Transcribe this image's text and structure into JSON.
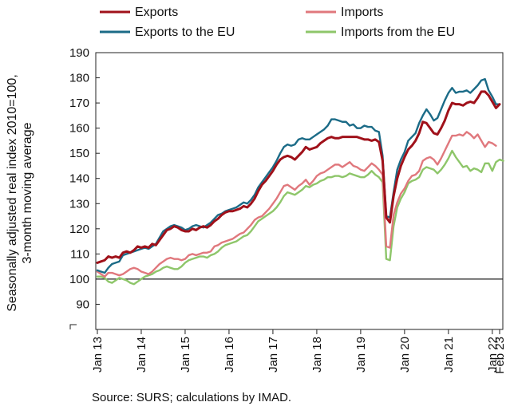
{
  "chart_data": {
    "type": "line",
    "ylabel_lines": [
      "Seasonally adjusted real index 2010=100,",
      "3-month moving average"
    ],
    "source": "Source: SURS; calculations by IMAD.",
    "ylim": [
      80,
      190
    ],
    "yticks": [
      "190",
      "180",
      "170",
      "160",
      "150",
      "140",
      "130",
      "120",
      "110",
      "100",
      "90"
    ],
    "xticks": [
      "Jan 13",
      "Jan 14",
      "Jan 15",
      "Jan 16",
      "Jan 17",
      "Jan 18",
      "Jan 19",
      "Jan 20",
      "Jan 21",
      "Jan 22",
      "Feb 23"
    ],
    "x_start": "Jan 2013",
    "x_end": "Feb 2023",
    "reference_line": 100,
    "grid": false,
    "legend_position": "top",
    "series": [
      {
        "name": "Exports",
        "color": "#a0111a",
        "values": [
          106.5,
          107,
          107.5,
          109,
          108.5,
          109,
          108.5,
          110.5,
          111,
          110.5,
          111.5,
          113,
          112.5,
          113,
          112.5,
          114,
          113.5,
          115.5,
          117.5,
          119.5,
          120,
          121,
          120.5,
          119.5,
          119,
          119,
          120,
          119.5,
          120.5,
          121,
          120.5,
          121.5,
          123,
          124,
          125.5,
          126.5,
          127,
          127,
          127.5,
          128,
          129,
          128.5,
          130,
          132,
          135,
          137.5,
          139,
          141,
          143,
          145.5,
          147.5,
          148.5,
          149,
          148.5,
          147.5,
          149,
          150.5,
          152.5,
          151.5,
          152,
          152.5,
          154,
          155,
          156,
          156.5,
          156,
          156,
          156.5,
          156.5,
          156.5,
          156.5,
          156.5,
          156,
          155.5,
          155.5,
          155,
          155.5,
          154.5,
          147,
          124.5,
          122.5,
          133,
          140,
          145,
          148.5,
          151.5,
          153,
          155,
          158,
          162.5,
          162,
          160,
          158,
          157.5,
          160,
          163,
          167,
          170,
          169.5,
          169.5,
          169,
          170,
          170.5,
          170,
          172,
          174.5,
          174.5,
          173,
          170.5,
          168,
          169.5
        ]
      },
      {
        "name": "Imports",
        "color": "#e0787d",
        "values": [
          103,
          102,
          101,
          102.5,
          102.5,
          102,
          101.5,
          102,
          103,
          104,
          104.5,
          104,
          103,
          102.5,
          102,
          103,
          104.5,
          106,
          107,
          108,
          108.5,
          108,
          108,
          107.5,
          108,
          109.5,
          110,
          109.5,
          110,
          110.5,
          110.5,
          111,
          113,
          113.5,
          114.5,
          115,
          115.5,
          116,
          117,
          118,
          118.5,
          120,
          121.5,
          123.5,
          124.5,
          125,
          126.5,
          128,
          130,
          132,
          134.5,
          137,
          137.5,
          136.5,
          135.5,
          137,
          138,
          139.5,
          137.5,
          139,
          141,
          142,
          142.5,
          143.5,
          144.5,
          145.5,
          145.5,
          144.5,
          145.5,
          146.5,
          145,
          144.5,
          143.5,
          143,
          144.5,
          146,
          145,
          143.5,
          141.5,
          113,
          112.5,
          125.5,
          130.5,
          134,
          136,
          139,
          141,
          141.5,
          143,
          147,
          148,
          148.5,
          147.5,
          145.5,
          148,
          151,
          154,
          157,
          157,
          157.5,
          157,
          158.5,
          157.5,
          156,
          157.5,
          155,
          152.5,
          154.5,
          154,
          153
        ]
      },
      {
        "name": "Exports to the EU",
        "color": "#1b6b87",
        "values": [
          103.5,
          103,
          102.5,
          104.5,
          106,
          106.5,
          107,
          109.5,
          110,
          110.5,
          111,
          111.5,
          112,
          112.5,
          112,
          113,
          114,
          116.5,
          119,
          120,
          121,
          121.5,
          121,
          120.5,
          119.5,
          120,
          121,
          121.5,
          121,
          120.5,
          121.5,
          122.5,
          124,
          125.5,
          126,
          127,
          127.5,
          128,
          128.5,
          129.5,
          130.5,
          130,
          131.5,
          133.5,
          136.5,
          138.5,
          140.5,
          142.5,
          144.5,
          147,
          150,
          152.5,
          153.5,
          153,
          153.5,
          155.5,
          156,
          155.5,
          155.5,
          156.5,
          157.5,
          158.5,
          159.5,
          161,
          163.5,
          163.5,
          163,
          162.5,
          162.5,
          161,
          161.5,
          160,
          160,
          161,
          160.5,
          160.5,
          159,
          158.5,
          149,
          125,
          124.5,
          134.5,
          143.5,
          147.5,
          150.5,
          155,
          156.5,
          158,
          162,
          165,
          167.5,
          165.5,
          163,
          164,
          167.5,
          171,
          174,
          176,
          174,
          174.5,
          174.5,
          175,
          174,
          175.5,
          177,
          179,
          179.5,
          175,
          172.5,
          169.5,
          169.5
        ]
      },
      {
        "name": "Imports from the EU",
        "color": "#8ec66a",
        "values": [
          101,
          101,
          100.5,
          99,
          98.5,
          99.5,
          100.5,
          100,
          99.5,
          98.5,
          98,
          99,
          100,
          101,
          101.5,
          102,
          103,
          103.5,
          104.5,
          105,
          104.5,
          104,
          104,
          105,
          106.5,
          107.5,
          108,
          108.5,
          109,
          109,
          108.5,
          109.5,
          110,
          111,
          112.5,
          113.5,
          114,
          114.5,
          115,
          116,
          117,
          117.5,
          119,
          121,
          123,
          124,
          125,
          126,
          127,
          128.5,
          130.5,
          133,
          134.5,
          134,
          133.5,
          134.5,
          135.5,
          137,
          136.5,
          137.5,
          138,
          139,
          139.5,
          140.5,
          140.5,
          141,
          141,
          140.5,
          141,
          142,
          141.5,
          141,
          140.5,
          140.5,
          141.5,
          143,
          141.5,
          140.5,
          138.5,
          108,
          107.5,
          121,
          128.5,
          132,
          134.5,
          138,
          139,
          139.5,
          140.5,
          143.5,
          144.5,
          144,
          143.5,
          142,
          143.5,
          145.5,
          148,
          151,
          148.5,
          146.5,
          144.5,
          145,
          143,
          144,
          143.5,
          142.5,
          146,
          146,
          143,
          146.5,
          147.5,
          147
        ]
      }
    ]
  }
}
